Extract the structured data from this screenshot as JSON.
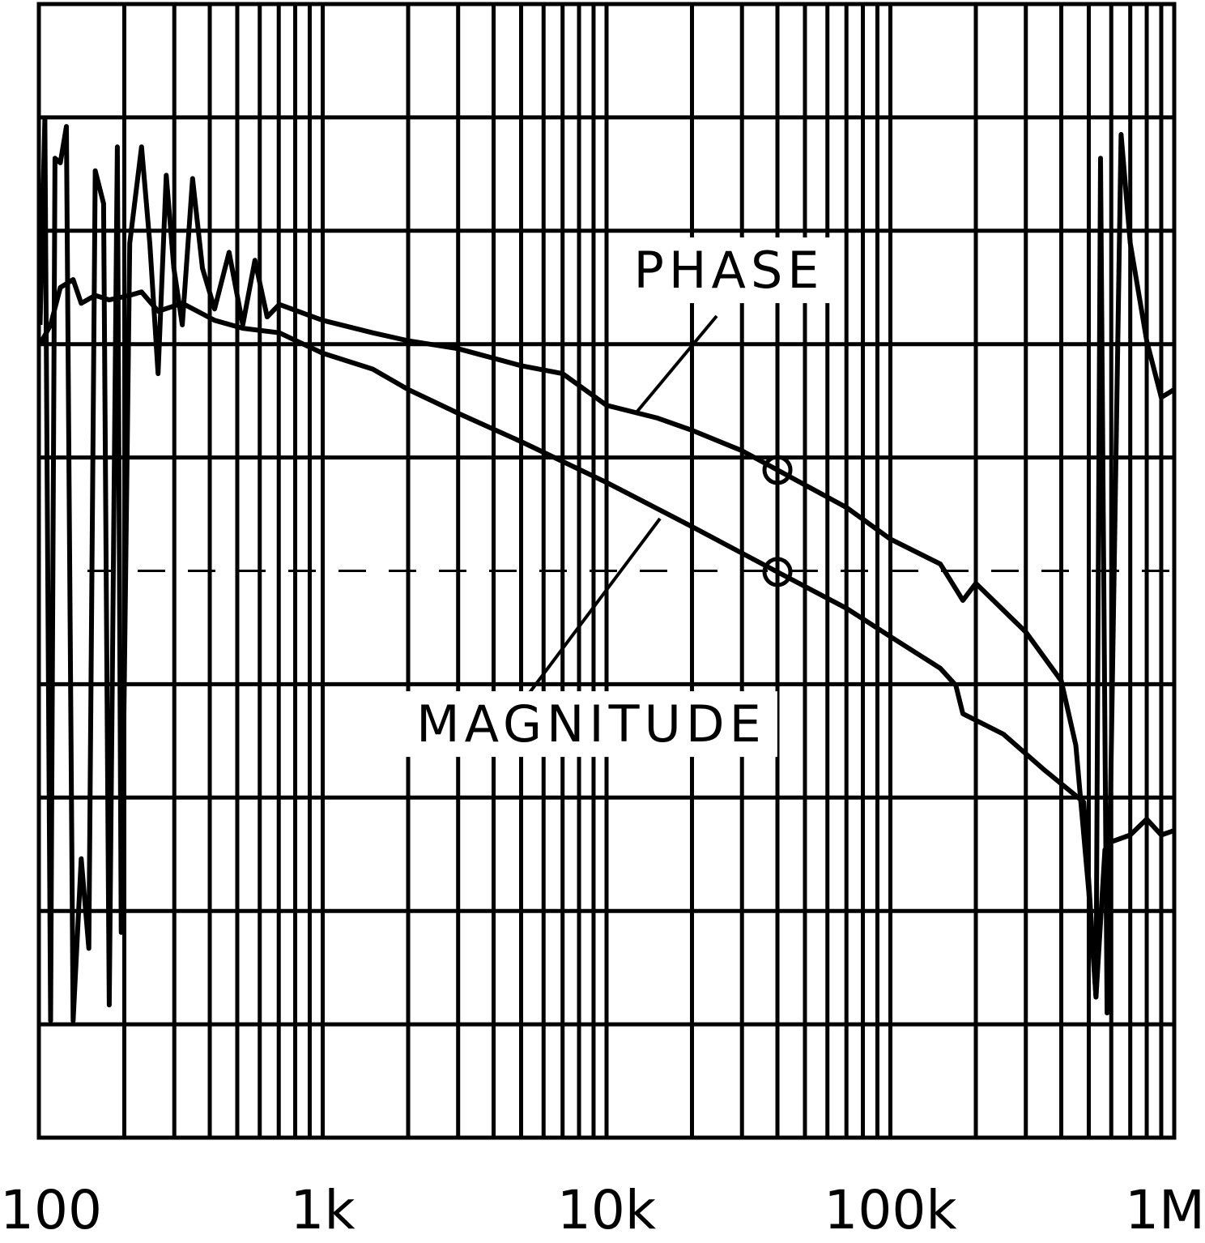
{
  "chart_data": {
    "type": "line",
    "xscale": "log",
    "xlim": [
      100,
      1000000
    ],
    "xticks": [
      {
        "value": 100,
        "label": "100"
      },
      {
        "value": 1000,
        "label": "1k"
      },
      {
        "value": 10000,
        "label": "10k"
      },
      {
        "value": 100000,
        "label": "100k"
      },
      {
        "value": 1000000,
        "label": "1M"
      }
    ],
    "minor_grid": true,
    "ylim": [
      0,
      10
    ],
    "yticks": [
      0,
      1,
      2,
      3,
      4,
      5,
      6,
      7,
      8,
      9,
      10
    ],
    "grid": true,
    "reference_line": 5,
    "series": [
      {
        "name": "PHASE",
        "color": "#000000",
        "x": [
          101,
          105,
          110,
          114,
          119,
          125,
          132,
          141,
          150,
          158,
          169,
          177,
          189,
          195,
          209,
          230,
          246,
          263,
          281,
          299,
          320,
          348,
          377,
          416,
          468,
          523,
          577,
          637,
          703,
          1000,
          1500,
          2000,
          3000,
          5000,
          7000,
          10000,
          15000,
          20000,
          30000,
          40000,
          70000,
          100000,
          150000,
          180000,
          200000,
          300000,
          400000,
          450000,
          500000,
          530000,
          550000,
          580000,
          650000,
          700000,
          800000,
          900000,
          1000000
        ],
        "values": [
          7.17,
          8.99,
          1.03,
          8.64,
          8.6,
          8.92,
          1.03,
          2.46,
          1.67,
          8.53,
          8.24,
          1.17,
          8.74,
          1.81,
          7.89,
          8.74,
          7.89,
          6.74,
          8.49,
          7.67,
          7.17,
          8.46,
          7.67,
          7.31,
          7.81,
          7.17,
          7.74,
          7.24,
          7.35,
          7.21,
          7.1,
          7.03,
          6.96,
          6.81,
          6.74,
          6.46,
          6.35,
          6.24,
          6.06,
          5.89,
          5.56,
          5.28,
          5.06,
          4.74,
          4.89,
          4.46,
          4.03,
          3.46,
          2.17,
          1.24,
          8.64,
          1.1,
          8.85,
          7.89,
          7.03,
          6.53,
          6.6
        ]
      },
      {
        "name": "MAGNITUDE",
        "color": "#000000",
        "x": [
          101,
          110,
          119,
          132,
          141,
          158,
          177,
          209,
          230,
          263,
          320,
          416,
          523,
          703,
          1000,
          1500,
          2000,
          3000,
          5000,
          10000,
          20000,
          40000,
          70000,
          100000,
          150000,
          170000,
          180000,
          250000,
          350000,
          480000,
          530000,
          570000,
          600000,
          700000,
          800000,
          900000,
          1000000
        ],
        "values": [
          7.0,
          7.17,
          7.5,
          7.57,
          7.36,
          7.43,
          7.39,
          7.43,
          7.46,
          7.29,
          7.36,
          7.21,
          7.14,
          7.1,
          6.92,
          6.78,
          6.6,
          6.39,
          6.14,
          5.78,
          5.39,
          4.99,
          4.67,
          4.42,
          4.14,
          3.99,
          3.74,
          3.56,
          3.24,
          2.96,
          1.24,
          2.54,
          2.61,
          2.67,
          2.81,
          2.67,
          2.71
        ]
      }
    ],
    "markers": [
      {
        "x": 40000,
        "y": 5.89
      },
      {
        "x": 40000,
        "y": 4.99
      }
    ]
  }
}
